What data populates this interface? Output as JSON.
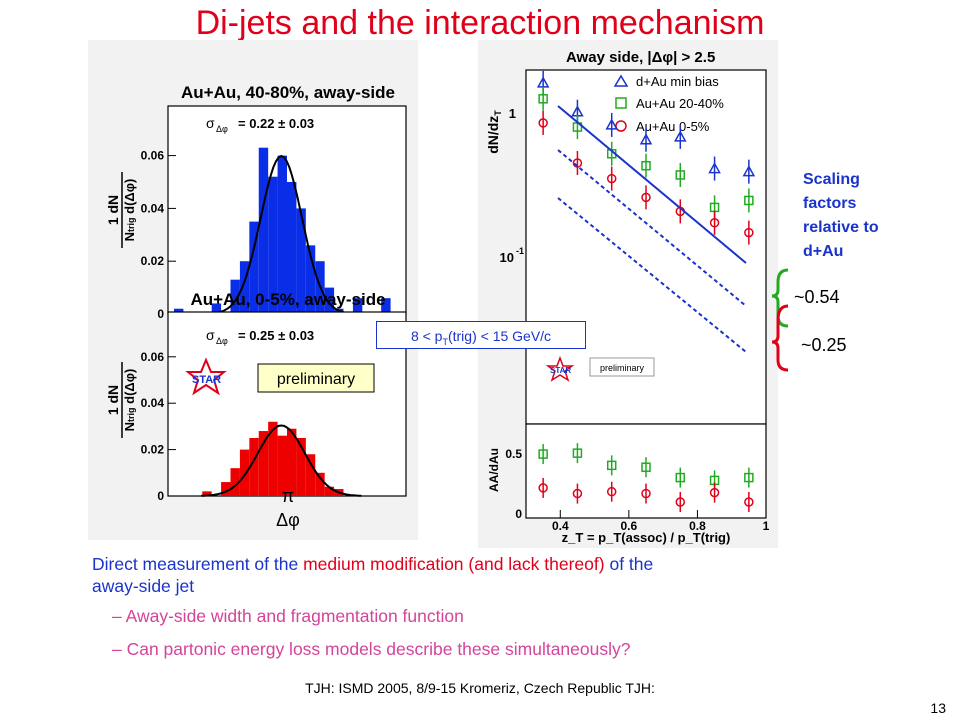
{
  "title": "Di-jets and the interaction mechanism",
  "left_plots": {
    "top": {
      "header": "Au+Au, 40-80%, away-side",
      "sigma_label": "σ",
      "sigma_sub": "Δφ",
      "sigma_value": "= 0.22 ± 0.03",
      "y_ticks": [
        "0.06",
        "0.04",
        "0.02",
        "0"
      ],
      "y_axis_label": "dN / N_trig d(Δφ)"
    },
    "bottom": {
      "header": "Au+Au, 0-5%, away-side",
      "sigma_label": "σ",
      "sigma_sub": "Δφ",
      "sigma_value": "= 0.25 ± 0.03",
      "y_ticks": [
        "0.06",
        "0.04",
        "0.02",
        "0"
      ],
      "preliminary": "preliminary",
      "x_tick": "π",
      "x_label": "Δφ",
      "y_axis_label": "dN / N_trig d(Δφ)"
    },
    "star_logo": "STAR"
  },
  "trig_range": "8 < p_T(trig) < 15 GeV/c",
  "right_plot": {
    "header": "Away side, |Δφ| > 2.5",
    "y_label_top": "dN/dz",
    "y_label_top_sub": "T",
    "y_label_bottom": "AA/dAu",
    "x_label": "z_T = p_T(assoc) / p_T(trig)",
    "top_y_ticks": [
      "1",
      "10",
      "-1"
    ],
    "bottom_y_ticks": [
      "0.5",
      "0"
    ],
    "x_ticks": [
      "0.4",
      "0.6",
      "0.8",
      "1"
    ],
    "preliminary": "preliminary",
    "star_logo": "STAR",
    "legend": [
      {
        "label": "d+Au min bias",
        "color": "#1a33cc",
        "marker": "triangle"
      },
      {
        "label": "Au+Au 20-40%",
        "color": "#22aa22",
        "marker": "square"
      },
      {
        "label": "Au+Au 0-5%",
        "color": "#e0001a",
        "marker": "circle"
      }
    ]
  },
  "chart_data": [
    {
      "type": "bar",
      "title": "Au+Au, 40-80%, away-side",
      "xlabel": "Δφ",
      "ylabel": "dN / N_trig d(Δφ)",
      "ylim": [
        0,
        0.075
      ],
      "x": [
        2.0,
        2.1,
        2.2,
        2.3,
        2.4,
        2.5,
        2.6,
        2.7,
        2.8,
        2.9,
        3.0,
        3.1,
        3.2,
        3.3,
        3.4,
        3.5,
        3.6,
        3.7,
        3.8,
        3.9,
        4.0,
        4.1,
        4.2,
        4.3
      ],
      "values": [
        0.002,
        0,
        0,
        0,
        0.004,
        0,
        0.013,
        0.02,
        0.035,
        0.063,
        0.052,
        0.06,
        0.05,
        0.04,
        0.026,
        0.02,
        0.01,
        0.002,
        0,
        0.006,
        0,
        0,
        0.006,
        0
      ],
      "fit_sigma": "0.22 ± 0.03"
    },
    {
      "type": "bar",
      "title": "Au+Au, 0-5%, away-side",
      "xlabel": "Δφ",
      "ylabel": "dN / N_trig d(Δφ)",
      "ylim": [
        0,
        0.075
      ],
      "x": [
        2.0,
        2.1,
        2.2,
        2.3,
        2.4,
        2.5,
        2.6,
        2.7,
        2.8,
        2.9,
        3.0,
        3.1,
        3.2,
        3.3,
        3.4,
        3.5,
        3.6,
        3.7,
        3.8,
        3.9,
        4.0,
        4.1,
        4.2,
        4.3
      ],
      "values": [
        0,
        0,
        0,
        0.002,
        0,
        0.006,
        0.012,
        0.02,
        0.025,
        0.028,
        0.032,
        0.026,
        0.029,
        0.025,
        0.018,
        0.01,
        0.004,
        0.003,
        0,
        0,
        0,
        0,
        0,
        0
      ],
      "fit_sigma": "0.25 ± 0.03"
    },
    {
      "type": "scatter",
      "title": "Away side, |Δφ| > 2.5",
      "xlabel": "z_T = p_T(assoc) / p_T(trig)",
      "ylabel": "dN/dz_T",
      "xlim": [
        0.3,
        1.0
      ],
      "ylim": [
        0.0003,
        1.5
      ],
      "log_y": true,
      "series": [
        {
          "name": "d+Au min bias",
          "x": [
            0.35,
            0.45,
            0.55,
            0.65,
            0.75,
            0.85,
            0.95
          ],
          "y": [
            1.1,
            0.55,
            0.4,
            0.28,
            0.3,
            0.14,
            0.13
          ]
        },
        {
          "name": "Au+Au 20-40%",
          "x": [
            0.35,
            0.45,
            0.55,
            0.65,
            0.75,
            0.85,
            0.95
          ],
          "y": [
            0.75,
            0.38,
            0.2,
            0.15,
            0.12,
            0.055,
            0.065
          ]
        },
        {
          "name": "Au+Au 0-5%",
          "x": [
            0.35,
            0.45,
            0.55,
            0.65,
            0.75,
            0.85,
            0.95
          ],
          "y": [
            0.42,
            0.16,
            0.11,
            0.07,
            0.05,
            0.038,
            0.03
          ]
        }
      ]
    },
    {
      "type": "scatter",
      "title": "",
      "xlabel": "z_T = p_T(assoc) / p_T(trig)",
      "ylabel": "AA/dAu",
      "xlim": [
        0.3,
        1.0
      ],
      "ylim": [
        0,
        1.0
      ],
      "series": [
        {
          "name": "Au+Au 20-40%",
          "x": [
            0.35,
            0.45,
            0.55,
            0.65,
            0.75,
            0.85,
            0.95
          ],
          "y": [
            0.68,
            0.69,
            0.56,
            0.54,
            0.43,
            0.4,
            0.43
          ]
        },
        {
          "name": "Au+Au 0-5%",
          "x": [
            0.35,
            0.45,
            0.55,
            0.65,
            0.75,
            0.85,
            0.95
          ],
          "y": [
            0.32,
            0.26,
            0.28,
            0.26,
            0.17,
            0.27,
            0.17
          ]
        }
      ]
    }
  ],
  "scaling": {
    "label_lines": [
      "Scaling",
      "factors",
      "relative to",
      "d+Au"
    ],
    "value_1": "~0.54",
    "value_2": "~0.25"
  },
  "body": {
    "line1_a": "Direct measurement of the ",
    "line1_b": "medium modification (and lack thereof)",
    "line1_c": " of the",
    "line2": "away-side jet",
    "bullet1": "–  Away-side width and fragmentation function",
    "bullet2": "–  Can partonic energy loss models describe these simultaneously?"
  },
  "footer": "TJH: ISMD 2005, 8/9-15 Kromeriz, Czech Republic TJH:",
  "page_number": "13",
  "colors": {
    "title": "#e0001a",
    "accent_blue": "#1a33cc",
    "green": "#22aa22",
    "pink": "#d4449a"
  }
}
